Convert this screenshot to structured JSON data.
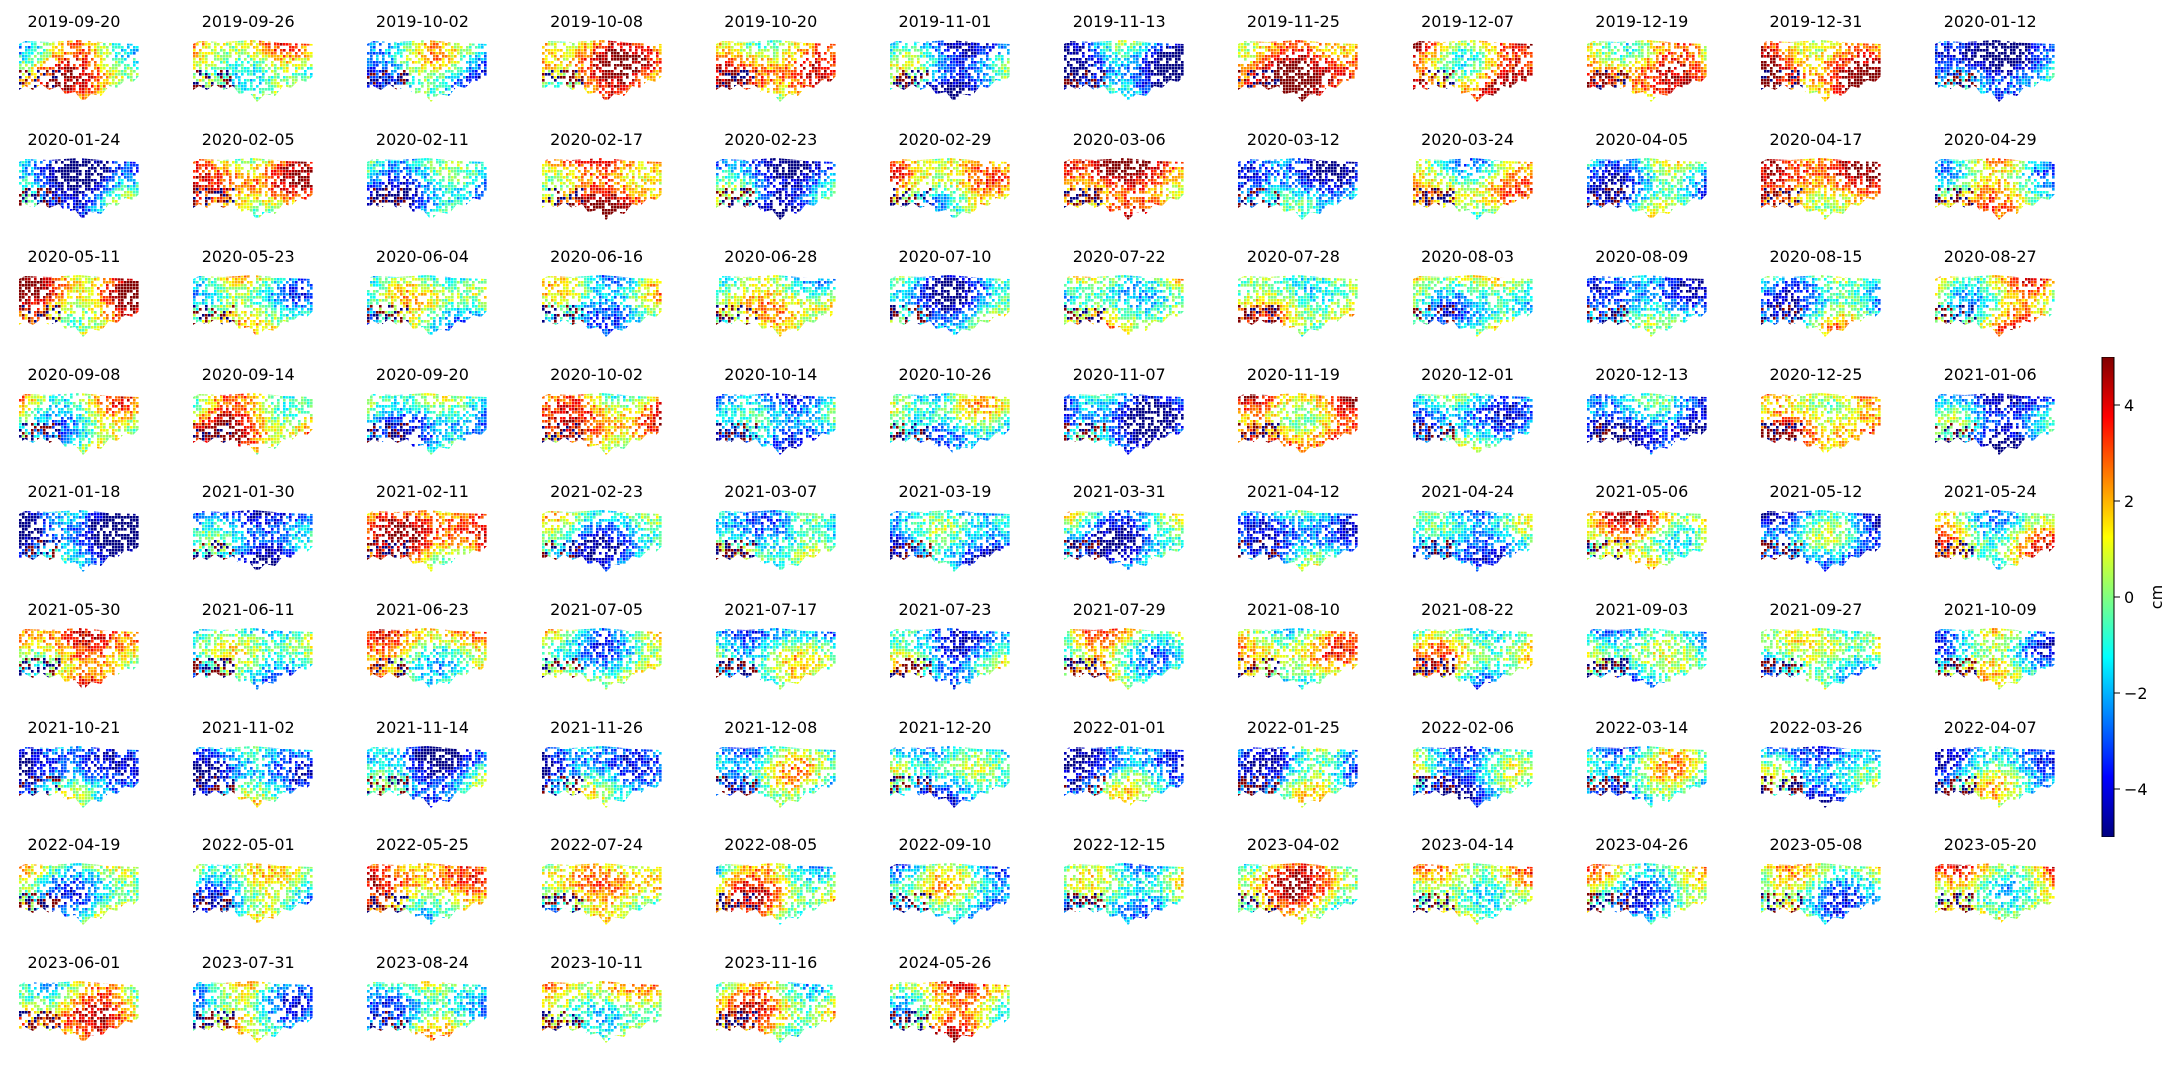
{
  "chart_data": {
    "type": "heatmap",
    "layout": {
      "columns": 12
    },
    "colormap": "jet",
    "colorbar": {
      "label": "cm",
      "range": [
        -5,
        5
      ],
      "ticks": [
        4,
        2,
        0,
        -2,
        -4
      ],
      "tick_labels": [
        "4",
        "2",
        "0",
        "−2",
        "−4"
      ]
    },
    "panels": [
      {
        "date": "2019-09-20",
        "mean_cm": 1.5
      },
      {
        "date": "2019-09-26",
        "mean_cm": 0.5
      },
      {
        "date": "2019-10-02",
        "mean_cm": -1.2
      },
      {
        "date": "2019-10-08",
        "mean_cm": 2.5
      },
      {
        "date": "2019-10-20",
        "mean_cm": 2.0
      },
      {
        "date": "2019-11-01",
        "mean_cm": -2.5
      },
      {
        "date": "2019-11-13",
        "mean_cm": -3.0
      },
      {
        "date": "2019-11-25",
        "mean_cm": 3.5
      },
      {
        "date": "2019-12-07",
        "mean_cm": 2.5
      },
      {
        "date": "2019-12-19",
        "mean_cm": 2.0
      },
      {
        "date": "2019-12-31",
        "mean_cm": 3.0
      },
      {
        "date": "2020-01-12",
        "mean_cm": -3.5
      },
      {
        "date": "2020-01-24",
        "mean_cm": -3.0
      },
      {
        "date": "2020-02-05",
        "mean_cm": 2.0
      },
      {
        "date": "2020-02-11",
        "mean_cm": -2.0
      },
      {
        "date": "2020-02-17",
        "mean_cm": 3.0
      },
      {
        "date": "2020-02-23",
        "mean_cm": -3.0
      },
      {
        "date": "2020-02-29",
        "mean_cm": 1.0
      },
      {
        "date": "2020-03-06",
        "mean_cm": 3.5
      },
      {
        "date": "2020-03-12",
        "mean_cm": -2.5
      },
      {
        "date": "2020-03-24",
        "mean_cm": 0.5
      },
      {
        "date": "2020-04-05",
        "mean_cm": -1.5
      },
      {
        "date": "2020-04-17",
        "mean_cm": 2.5
      },
      {
        "date": "2020-04-29",
        "mean_cm": 0.5
      },
      {
        "date": "2020-05-11",
        "mean_cm": 2.5
      },
      {
        "date": "2020-05-23",
        "mean_cm": 0.0
      },
      {
        "date": "2020-06-04",
        "mean_cm": -0.5
      },
      {
        "date": "2020-06-16",
        "mean_cm": -1.0
      },
      {
        "date": "2020-06-28",
        "mean_cm": 0.5
      },
      {
        "date": "2020-07-10",
        "mean_cm": -2.0
      },
      {
        "date": "2020-07-22",
        "mean_cm": 0.0
      },
      {
        "date": "2020-07-28",
        "mean_cm": 0.5
      },
      {
        "date": "2020-08-03",
        "mean_cm": -0.5
      },
      {
        "date": "2020-08-09",
        "mean_cm": -2.0
      },
      {
        "date": "2020-08-15",
        "mean_cm": -1.0
      },
      {
        "date": "2020-08-27",
        "mean_cm": 1.0
      },
      {
        "date": "2020-09-08",
        "mean_cm": 0.0
      },
      {
        "date": "2020-09-14",
        "mean_cm": 2.0
      },
      {
        "date": "2020-09-20",
        "mean_cm": -1.5
      },
      {
        "date": "2020-10-02",
        "mean_cm": 2.0
      },
      {
        "date": "2020-10-14",
        "mean_cm": -2.5
      },
      {
        "date": "2020-10-26",
        "mean_cm": -1.0
      },
      {
        "date": "2020-11-07",
        "mean_cm": -3.0
      },
      {
        "date": "2020-11-19",
        "mean_cm": 2.5
      },
      {
        "date": "2020-12-01",
        "mean_cm": -1.5
      },
      {
        "date": "2020-12-13",
        "mean_cm": -3.0
      },
      {
        "date": "2020-12-25",
        "mean_cm": 2.0
      },
      {
        "date": "2021-01-06",
        "mean_cm": -3.0
      },
      {
        "date": "2021-01-18",
        "mean_cm": -3.5
      },
      {
        "date": "2021-01-30",
        "mean_cm": -3.0
      },
      {
        "date": "2021-02-11",
        "mean_cm": 2.5
      },
      {
        "date": "2021-02-23",
        "mean_cm": -1.5
      },
      {
        "date": "2021-03-07",
        "mean_cm": -1.0
      },
      {
        "date": "2021-03-19",
        "mean_cm": -2.0
      },
      {
        "date": "2021-03-31",
        "mean_cm": -2.0
      },
      {
        "date": "2021-04-12",
        "mean_cm": -2.0
      },
      {
        "date": "2021-04-24",
        "mean_cm": -2.0
      },
      {
        "date": "2021-05-06",
        "mean_cm": 1.5
      },
      {
        "date": "2021-05-12",
        "mean_cm": -2.5
      },
      {
        "date": "2021-05-24",
        "mean_cm": 0.5
      },
      {
        "date": "2021-05-30",
        "mean_cm": 2.0
      },
      {
        "date": "2021-06-11",
        "mean_cm": -1.0
      },
      {
        "date": "2021-06-23",
        "mean_cm": 1.0
      },
      {
        "date": "2021-07-05",
        "mean_cm": -0.5
      },
      {
        "date": "2021-07-17",
        "mean_cm": -1.0
      },
      {
        "date": "2021-07-23",
        "mean_cm": -1.5
      },
      {
        "date": "2021-07-29",
        "mean_cm": 0.5
      },
      {
        "date": "2021-08-10",
        "mean_cm": 0.5
      },
      {
        "date": "2021-08-22",
        "mean_cm": 0.0
      },
      {
        "date": "2021-09-03",
        "mean_cm": -1.0
      },
      {
        "date": "2021-09-27",
        "mean_cm": -0.5
      },
      {
        "date": "2021-10-09",
        "mean_cm": -0.5
      },
      {
        "date": "2021-10-21",
        "mean_cm": -2.5
      },
      {
        "date": "2021-11-02",
        "mean_cm": -2.0
      },
      {
        "date": "2021-11-14",
        "mean_cm": -2.5
      },
      {
        "date": "2021-11-26",
        "mean_cm": -2.0
      },
      {
        "date": "2021-12-08",
        "mean_cm": -1.0
      },
      {
        "date": "2021-12-20",
        "mean_cm": -1.5
      },
      {
        "date": "2022-01-01",
        "mean_cm": -2.0
      },
      {
        "date": "2022-01-25",
        "mean_cm": -1.5
      },
      {
        "date": "2022-02-06",
        "mean_cm": -2.0
      },
      {
        "date": "2022-03-14",
        "mean_cm": -1.0
      },
      {
        "date": "2022-03-26",
        "mean_cm": -2.0
      },
      {
        "date": "2022-04-07",
        "mean_cm": -1.5
      },
      {
        "date": "2022-04-19",
        "mean_cm": -0.5
      },
      {
        "date": "2022-05-01",
        "mean_cm": -0.5
      },
      {
        "date": "2022-05-25",
        "mean_cm": 1.5
      },
      {
        "date": "2022-07-24",
        "mean_cm": 1.0
      },
      {
        "date": "2022-08-05",
        "mean_cm": 1.0
      },
      {
        "date": "2022-09-10",
        "mean_cm": -1.0
      },
      {
        "date": "2022-12-15",
        "mean_cm": -1.0
      },
      {
        "date": "2023-04-02",
        "mean_cm": 1.5
      },
      {
        "date": "2023-04-14",
        "mean_cm": 0.5
      },
      {
        "date": "2023-04-26",
        "mean_cm": -0.5
      },
      {
        "date": "2023-05-08",
        "mean_cm": -0.5
      },
      {
        "date": "2023-05-20",
        "mean_cm": 1.0
      },
      {
        "date": "2023-06-01",
        "mean_cm": 1.5
      },
      {
        "date": "2023-07-31",
        "mean_cm": -0.5
      },
      {
        "date": "2023-08-24",
        "mean_cm": -0.5
      },
      {
        "date": "2023-10-11",
        "mean_cm": 0.5
      },
      {
        "date": "2023-11-16",
        "mean_cm": 1.0
      },
      {
        "date": "2024-05-26",
        "mean_cm": 1.5
      }
    ]
  }
}
